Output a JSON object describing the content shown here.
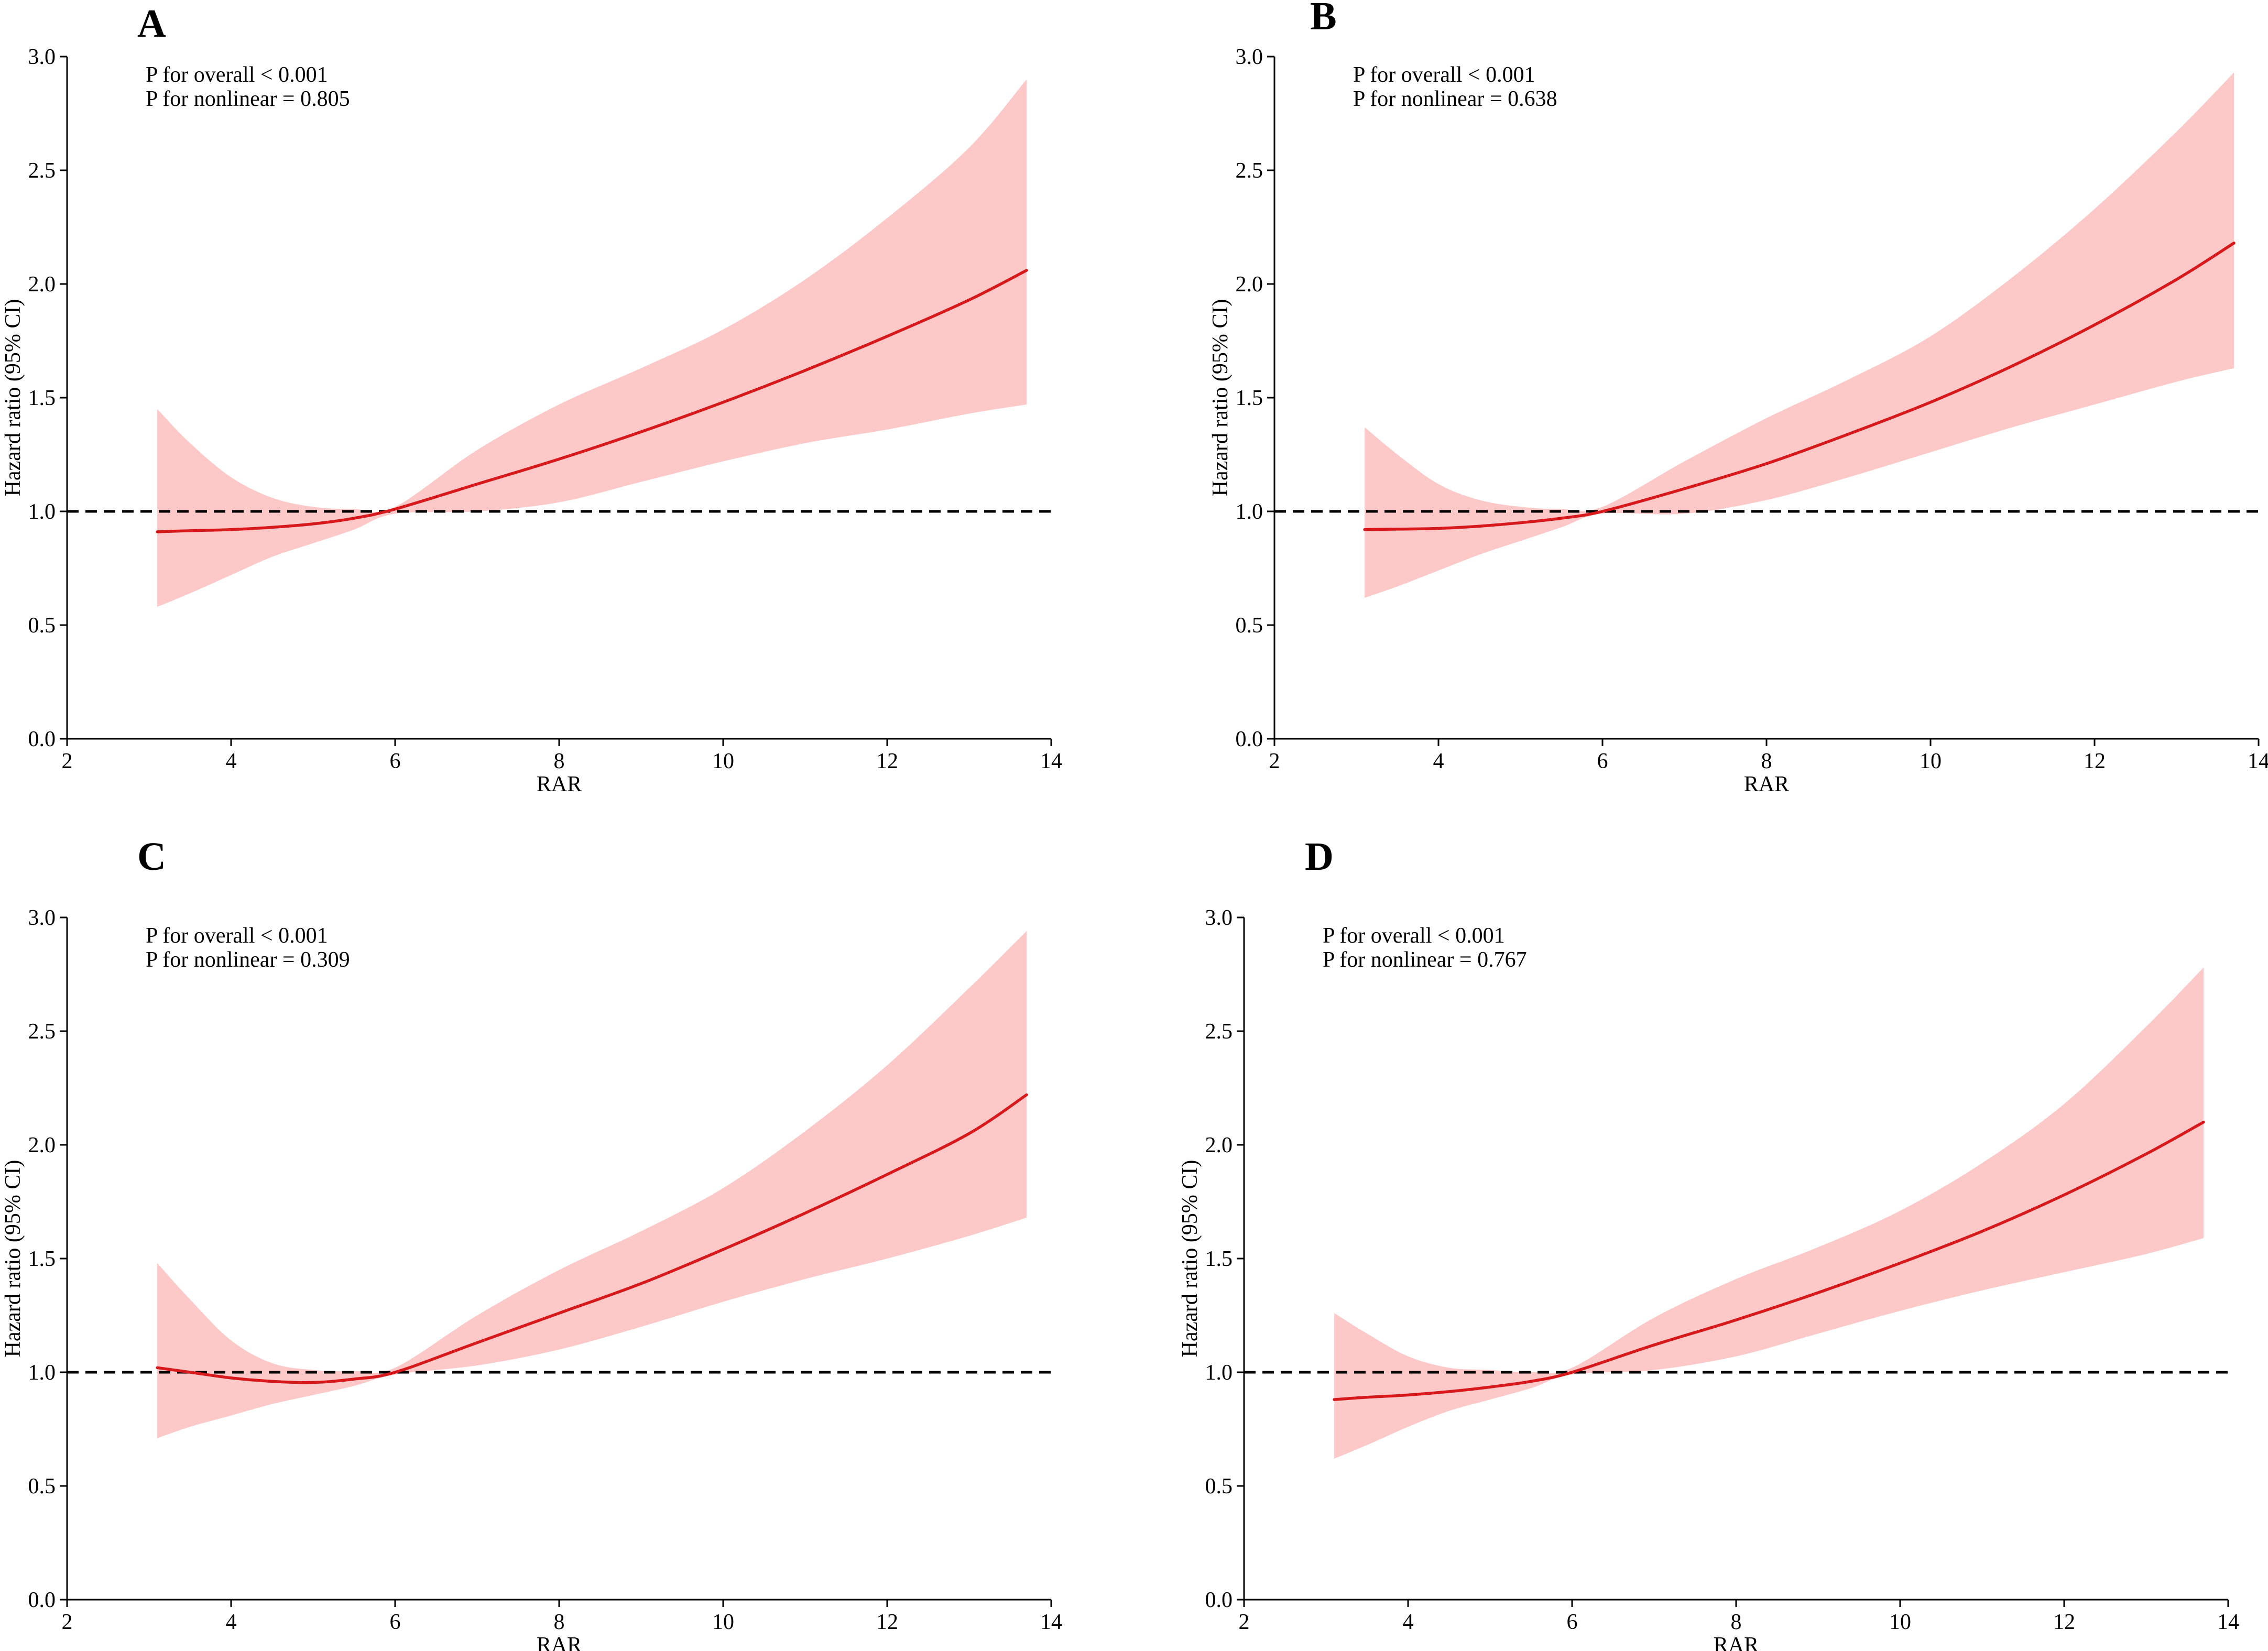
{
  "figure": {
    "colors": {
      "ci_fill": "#fcc8c8",
      "line": "#d7191c",
      "reference": "#000000",
      "axis": "#000000"
    }
  },
  "chart_data": [
    {
      "panel": "A",
      "type": "line",
      "title": "",
      "xlabel": "RAR",
      "ylabel": "Hazard ratio (95% CI)",
      "xlim": [
        2,
        14
      ],
      "ylim": [
        0.0,
        3.0
      ],
      "xticks": [
        2,
        4,
        6,
        8,
        10,
        12,
        14
      ],
      "yticks": [
        0.0,
        0.5,
        1.0,
        1.5,
        2.0,
        2.5,
        3.0
      ],
      "reference_line": 1.0,
      "annotations": [
        "P for overall < 0.001",
        "P for nonlinear = 0.805"
      ],
      "series": [
        {
          "name": "HR",
          "x": [
            3.1,
            3.5,
            4,
            4.5,
            5,
            5.5,
            6,
            7,
            8,
            9,
            10,
            11,
            12,
            13,
            13.7
          ],
          "values": [
            0.91,
            0.915,
            0.92,
            0.93,
            0.945,
            0.97,
            1.01,
            1.12,
            1.23,
            1.35,
            1.48,
            1.62,
            1.77,
            1.93,
            2.06
          ]
        },
        {
          "name": "Lower 95% CI",
          "x": [
            3.1,
            3.5,
            4,
            4.5,
            5,
            5.5,
            6,
            7,
            8,
            9,
            10,
            11,
            12,
            13,
            13.7
          ],
          "values": [
            0.58,
            0.64,
            0.72,
            0.8,
            0.86,
            0.92,
            0.99,
            1.0,
            1.04,
            1.13,
            1.22,
            1.3,
            1.36,
            1.43,
            1.47
          ]
        },
        {
          "name": "Upper 95% CI",
          "x": [
            3.1,
            3.5,
            4,
            4.5,
            5,
            5.5,
            6,
            7,
            8,
            9,
            10,
            11,
            12,
            13,
            13.7
          ],
          "values": [
            1.45,
            1.3,
            1.15,
            1.06,
            1.02,
            1.01,
            1.02,
            1.27,
            1.47,
            1.63,
            1.8,
            2.02,
            2.29,
            2.6,
            2.9
          ]
        }
      ]
    },
    {
      "panel": "B",
      "type": "line",
      "title": "",
      "xlabel": "RAR",
      "ylabel": "Hazard ratio (95% CI)",
      "xlim": [
        2,
        14
      ],
      "ylim": [
        0.0,
        3.0
      ],
      "xticks": [
        2,
        4,
        6,
        8,
        10,
        12,
        14
      ],
      "yticks": [
        0.0,
        0.5,
        1.0,
        1.5,
        2.0,
        2.5,
        3.0
      ],
      "reference_line": 1.0,
      "annotations": [
        "P for overall < 0.001",
        "P for nonlinear = 0.638"
      ],
      "series": [
        {
          "name": "HR",
          "x": [
            3.1,
            3.5,
            4,
            4.5,
            5,
            5.5,
            6,
            7,
            8,
            9,
            10,
            11,
            12,
            13,
            13.7
          ],
          "values": [
            0.92,
            0.922,
            0.925,
            0.935,
            0.95,
            0.97,
            1.0,
            1.1,
            1.21,
            1.34,
            1.48,
            1.64,
            1.82,
            2.02,
            2.18
          ]
        },
        {
          "name": "Lower 95% CI",
          "x": [
            3.1,
            3.5,
            4,
            4.5,
            5,
            5.5,
            6,
            7,
            8,
            9,
            10,
            11,
            12,
            13,
            13.7
          ],
          "values": [
            0.62,
            0.67,
            0.74,
            0.81,
            0.87,
            0.93,
            0.99,
            0.99,
            1.05,
            1.15,
            1.26,
            1.37,
            1.47,
            1.57,
            1.63
          ]
        },
        {
          "name": "Upper 95% CI",
          "x": [
            3.1,
            3.5,
            4,
            4.5,
            5,
            5.5,
            6,
            7,
            8,
            9,
            10,
            11,
            12,
            13,
            13.7
          ],
          "values": [
            1.37,
            1.25,
            1.12,
            1.05,
            1.02,
            1.01,
            1.02,
            1.22,
            1.41,
            1.58,
            1.77,
            2.03,
            2.33,
            2.67,
            2.93
          ]
        }
      ]
    },
    {
      "panel": "C",
      "type": "line",
      "title": "",
      "xlabel": "RAR",
      "ylabel": "Hazard ratio (95% CI)",
      "xlim": [
        2,
        14
      ],
      "ylim": [
        0.0,
        3.0
      ],
      "xticks": [
        2,
        4,
        6,
        8,
        10,
        12,
        14
      ],
      "yticks": [
        0.0,
        0.5,
        1.0,
        1.5,
        2.0,
        2.5,
        3.0
      ],
      "reference_line": 1.0,
      "annotations": [
        "P for overall < 0.001",
        "P for nonlinear = 0.309"
      ],
      "series": [
        {
          "name": "HR",
          "x": [
            3.1,
            3.5,
            4,
            4.5,
            5,
            5.5,
            6,
            7,
            8,
            9,
            10,
            11,
            12,
            13,
            13.7
          ],
          "values": [
            1.02,
            1.0,
            0.975,
            0.96,
            0.955,
            0.97,
            1.0,
            1.13,
            1.26,
            1.39,
            1.54,
            1.7,
            1.87,
            2.05,
            2.22
          ]
        },
        {
          "name": "Lower 95% CI",
          "x": [
            3.1,
            3.5,
            4,
            4.5,
            5,
            5.5,
            6,
            7,
            8,
            9,
            10,
            11,
            12,
            13,
            13.7
          ],
          "values": [
            0.71,
            0.76,
            0.81,
            0.86,
            0.9,
            0.94,
            0.99,
            1.03,
            1.1,
            1.2,
            1.31,
            1.41,
            1.5,
            1.6,
            1.68
          ]
        },
        {
          "name": "Upper 95% CI",
          "x": [
            3.1,
            3.5,
            4,
            4.5,
            5,
            5.5,
            6,
            7,
            8,
            9,
            10,
            11,
            12,
            13,
            13.7
          ],
          "values": [
            1.48,
            1.32,
            1.14,
            1.04,
            1.01,
            1.005,
            1.02,
            1.25,
            1.45,
            1.62,
            1.81,
            2.06,
            2.35,
            2.69,
            2.94
          ]
        }
      ]
    },
    {
      "panel": "D",
      "type": "line",
      "title": "",
      "xlabel": "RAR",
      "ylabel": "Hazard ratio (95% CI)",
      "xlim": [
        2,
        14
      ],
      "ylim": [
        0.0,
        3.0
      ],
      "xticks": [
        2,
        4,
        6,
        8,
        10,
        12,
        14
      ],
      "yticks": [
        0.0,
        0.5,
        1.0,
        1.5,
        2.0,
        2.5,
        3.0
      ],
      "reference_line": 1.0,
      "annotations": [
        "P for overall < 0.001",
        "P for nonlinear = 0.767"
      ],
      "series": [
        {
          "name": "HR",
          "x": [
            3.1,
            3.5,
            4,
            4.5,
            5,
            5.5,
            6,
            7,
            8,
            9,
            10,
            11,
            12,
            13,
            13.7
          ],
          "values": [
            0.88,
            0.89,
            0.9,
            0.915,
            0.935,
            0.96,
            1.0,
            1.12,
            1.23,
            1.35,
            1.48,
            1.62,
            1.78,
            1.96,
            2.1
          ]
        },
        {
          "name": "Lower 95% CI",
          "x": [
            3.1,
            3.5,
            4,
            4.5,
            5,
            5.5,
            6,
            7,
            8,
            9,
            10,
            11,
            12,
            13,
            13.7
          ],
          "values": [
            0.62,
            0.68,
            0.76,
            0.83,
            0.88,
            0.93,
            0.99,
            1.01,
            1.07,
            1.17,
            1.27,
            1.36,
            1.44,
            1.52,
            1.59
          ]
        },
        {
          "name": "Upper 95% CI",
          "x": [
            3.1,
            3.5,
            4,
            4.5,
            5,
            5.5,
            6,
            7,
            8,
            9,
            10,
            11,
            12,
            13,
            13.7
          ],
          "values": [
            1.26,
            1.17,
            1.07,
            1.02,
            1.01,
            1.0,
            1.02,
            1.24,
            1.41,
            1.55,
            1.71,
            1.92,
            2.18,
            2.52,
            2.78
          ]
        }
      ]
    }
  ]
}
